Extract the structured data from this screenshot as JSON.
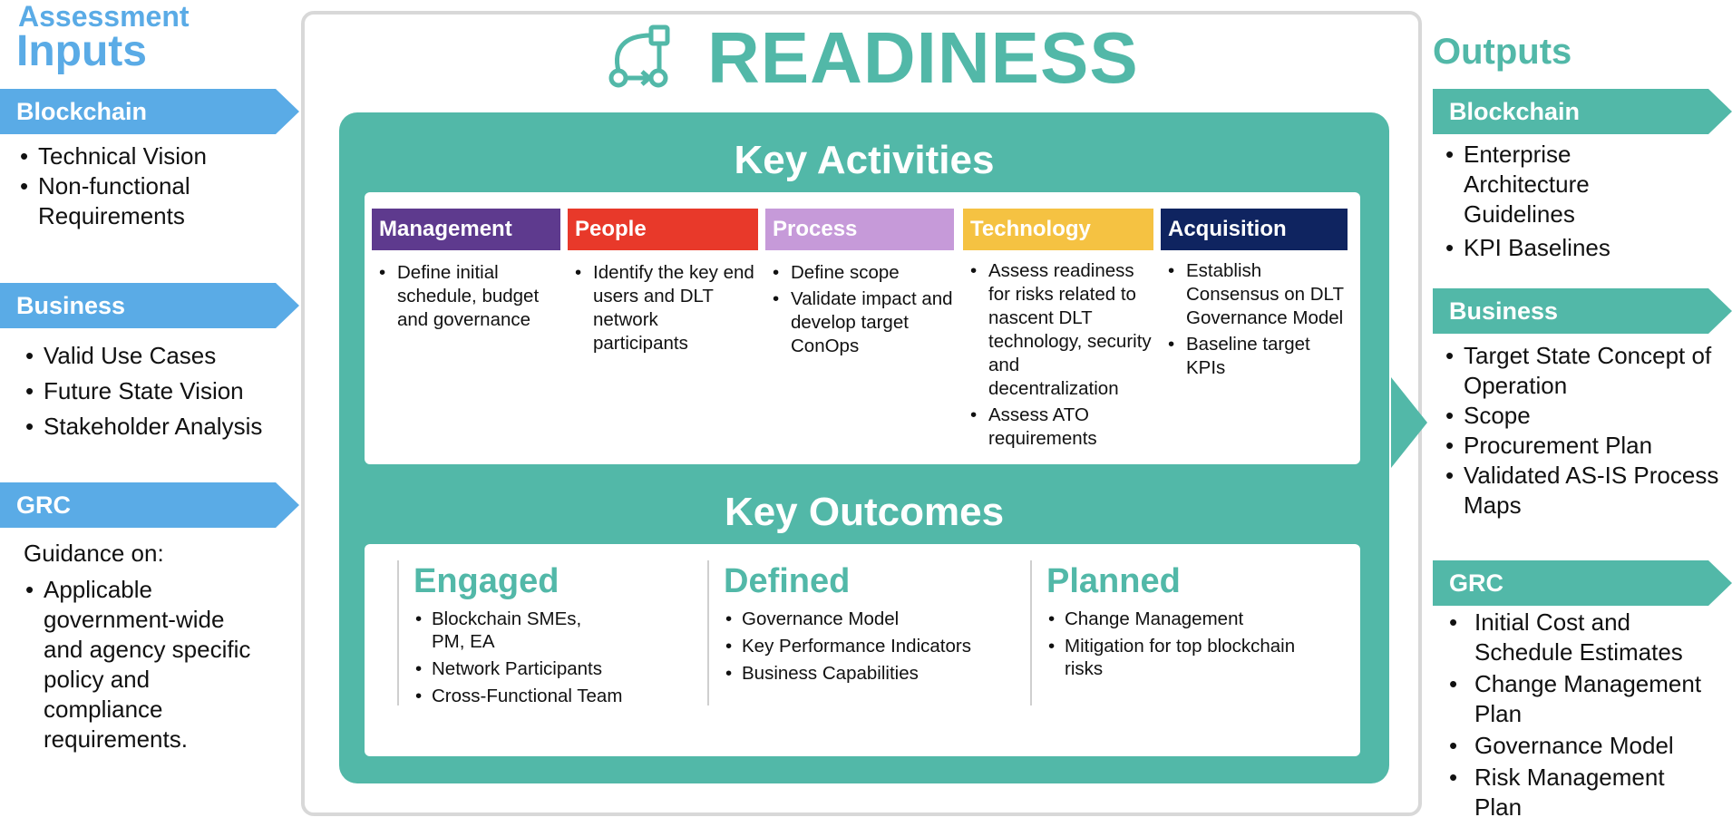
{
  "inputs": {
    "title_small": "Assessment",
    "title_big": "Inputs",
    "blockchain": {
      "label": "Blockchain",
      "items": [
        "Technical Vision",
        "Non-functional Requirements"
      ]
    },
    "business": {
      "label": "Business",
      "items": [
        "Valid Use Cases",
        "Future State Vision",
        "Stakeholder Analysis"
      ]
    },
    "grc": {
      "label": "GRC",
      "intro": "Guidance on:",
      "items": [
        "Applicable government-wide and agency specific policy and compliance requirements."
      ]
    }
  },
  "center": {
    "title": "READINESS",
    "icon": "workflow-icon",
    "activities_heading": "Key Activities",
    "activities": [
      {
        "label": "Management",
        "color": "#5e3a8e",
        "items": [
          "Define initial schedule, budget and governance"
        ]
      },
      {
        "label": "People",
        "color": "#e8392a",
        "items": [
          "Identify the key end users and DLT network participants"
        ]
      },
      {
        "label": "Process",
        "color": "#c69ad9",
        "items": [
          "Define scope",
          "Validate impact and develop target ConOps"
        ]
      },
      {
        "label": "Technology",
        "color": "#f5c242",
        "items": [
          "Assess readiness for risks related to nascent DLT technology, security and decentralization",
          "Assess ATO requirements"
        ]
      },
      {
        "label": "Acquisition",
        "color": "#0f2460",
        "items": [
          "Establish Consensus on DLT Governance Model",
          "Baseline target KPIs"
        ]
      }
    ],
    "outcomes_heading": "Key Outcomes",
    "outcomes": [
      {
        "label": "Engaged",
        "items": [
          "Blockchain SMEs, PM, EA",
          "Network Participants",
          "Cross-Functional Team"
        ]
      },
      {
        "label": "Defined",
        "items": [
          "Governance Model",
          "Key Performance Indicators",
          "Business Capabilities"
        ]
      },
      {
        "label": "Planned",
        "items": [
          "Change Management",
          "Mitigation for top blockchain risks"
        ]
      }
    ]
  },
  "outputs": {
    "title": "Outputs",
    "blockchain": {
      "label": "Blockchain",
      "items": [
        "Enterprise Architecture Guidelines",
        "KPI Baselines"
      ]
    },
    "business": {
      "label": "Business",
      "items": [
        "Target State Concept of Operation",
        "Scope",
        "Procurement Plan",
        "Validated AS-IS Process Maps"
      ]
    },
    "grc": {
      "label": "GRC",
      "items": [
        "Initial Cost and Schedule Estimates",
        "Change Management Plan",
        "Governance Model",
        "Risk Management Plan"
      ]
    }
  }
}
